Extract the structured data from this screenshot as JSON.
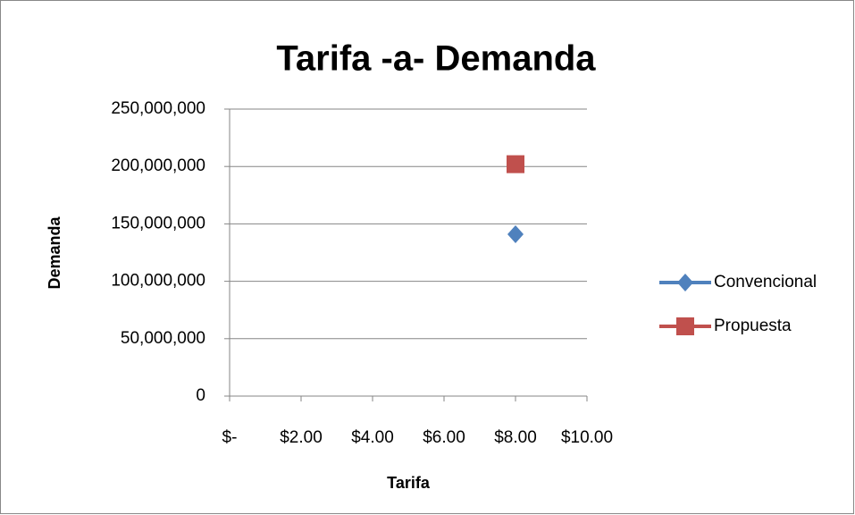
{
  "chart_data": {
    "type": "scatter",
    "title": "Tarifa -a- Demanda",
    "x_label": "Tarifa",
    "y_label": "Demanda",
    "series": [
      {
        "name": "Convencional",
        "color": "#4f81bd",
        "marker": "diamond",
        "x": [
          8
        ],
        "values": [
          141000000
        ]
      },
      {
        "name": "Propuesta",
        "color": "#c0504d",
        "marker": "square",
        "x": [
          8
        ],
        "values": [
          202000000
        ]
      }
    ],
    "xlim": [
      0,
      10
    ],
    "xticks": [
      {
        "value": 0,
        "label": "$-"
      },
      {
        "value": 2,
        "label": "$2.00"
      },
      {
        "value": 4,
        "label": "$4.00"
      },
      {
        "value": 6,
        "label": "$6.00"
      },
      {
        "value": 8,
        "label": "$8.00"
      },
      {
        "value": 10,
        "label": "$10.00"
      }
    ],
    "ylim": [
      0,
      250000000
    ],
    "yticks": [
      0,
      {
        "value": 50000000,
        "label": "50,000,000"
      },
      {
        "value": 100000000,
        "label": "100,000,000"
      },
      {
        "value": 150000000,
        "label": "150,000,000"
      },
      {
        "value": 200000000,
        "label": "200,000,000"
      },
      {
        "value": 250000000,
        "label": "250,000,000"
      }
    ],
    "grid": true,
    "legend": "right"
  }
}
